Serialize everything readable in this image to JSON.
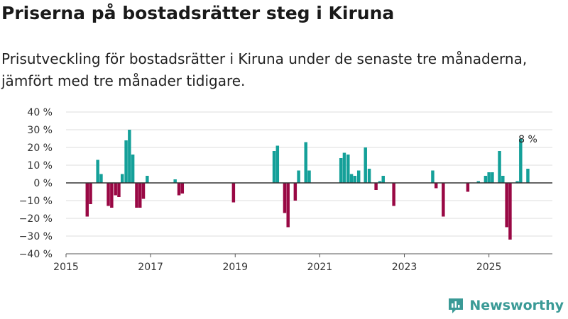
{
  "header": {
    "title": "Priserna på bostadsrätter steg i Kiruna",
    "subtitle": "Prisutveckling för bostadsrätter i Kiruna under de senaste tre månaderna, jämfört med tre månader tidigare."
  },
  "brand": {
    "name": "Newsworthy",
    "icon": "newsworthy-logo-icon"
  },
  "colors": {
    "positive": "#14a099",
    "negative": "#990844",
    "zero_line": "#333333",
    "grid": "#dddddd"
  },
  "chart_data": {
    "type": "bar",
    "title": "Priserna på bostadsrätter steg i Kiruna",
    "xlabel": "",
    "ylabel": "",
    "ylim": [
      -40,
      40
    ],
    "xlim": [
      2015,
      2026.5
    ],
    "y_ticks": [
      40,
      30,
      20,
      10,
      0,
      -10,
      -20,
      -30,
      -40
    ],
    "y_tick_labels": [
      "40 %",
      "30 %",
      "20 %",
      "10 %",
      "0 %",
      "−10 %",
      "−20 %",
      "−30 %",
      "−40 %"
    ],
    "x_ticks": [
      2015,
      2017,
      2019,
      2021,
      2023,
      2025
    ],
    "x_tick_labels": [
      "2015",
      "2017",
      "2019",
      "2021",
      "2023",
      "2025"
    ],
    "grid": true,
    "bar_width_years": 0.075,
    "series": [
      {
        "name": "Prisutveckling",
        "points": [
          {
            "x": 2015.5,
            "value": -19
          },
          {
            "x": 2015.58,
            "value": -12
          },
          {
            "x": 2015.75,
            "value": 13
          },
          {
            "x": 2015.83,
            "value": 5
          },
          {
            "x": 2016.0,
            "value": -13
          },
          {
            "x": 2016.08,
            "value": -14
          },
          {
            "x": 2016.17,
            "value": -7
          },
          {
            "x": 2016.25,
            "value": -8
          },
          {
            "x": 2016.33,
            "value": 5
          },
          {
            "x": 2016.42,
            "value": 24
          },
          {
            "x": 2016.5,
            "value": 30
          },
          {
            "x": 2016.58,
            "value": 16
          },
          {
            "x": 2016.67,
            "value": -14
          },
          {
            "x": 2016.75,
            "value": -14
          },
          {
            "x": 2016.83,
            "value": -9
          },
          {
            "x": 2016.92,
            "value": 4
          },
          {
            "x": 2017.58,
            "value": 2
          },
          {
            "x": 2017.67,
            "value": -7
          },
          {
            "x": 2017.75,
            "value": -6
          },
          {
            "x": 2018.96,
            "value": -11
          },
          {
            "x": 2019.92,
            "value": 18
          },
          {
            "x": 2020.0,
            "value": 21
          },
          {
            "x": 2020.17,
            "value": -17
          },
          {
            "x": 2020.25,
            "value": -25
          },
          {
            "x": 2020.42,
            "value": -10
          },
          {
            "x": 2020.5,
            "value": 7
          },
          {
            "x": 2020.67,
            "value": 23
          },
          {
            "x": 2020.75,
            "value": 7
          },
          {
            "x": 2021.5,
            "value": 14
          },
          {
            "x": 2021.58,
            "value": 17
          },
          {
            "x": 2021.67,
            "value": 16
          },
          {
            "x": 2021.75,
            "value": 5
          },
          {
            "x": 2021.83,
            "value": 4
          },
          {
            "x": 2021.92,
            "value": 7
          },
          {
            "x": 2022.08,
            "value": 20
          },
          {
            "x": 2022.17,
            "value": 8
          },
          {
            "x": 2022.33,
            "value": -4
          },
          {
            "x": 2022.42,
            "value": 1
          },
          {
            "x": 2022.5,
            "value": 4
          },
          {
            "x": 2022.75,
            "value": -13
          },
          {
            "x": 2023.67,
            "value": 7
          },
          {
            "x": 2023.75,
            "value": -3
          },
          {
            "x": 2023.92,
            "value": -19
          },
          {
            "x": 2024.5,
            "value": -5
          },
          {
            "x": 2024.75,
            "value": 1
          },
          {
            "x": 2024.92,
            "value": 4
          },
          {
            "x": 2025.0,
            "value": 6
          },
          {
            "x": 2025.08,
            "value": 6
          },
          {
            "x": 2025.25,
            "value": 18
          },
          {
            "x": 2025.33,
            "value": 4
          },
          {
            "x": 2025.42,
            "value": -25
          },
          {
            "x": 2025.5,
            "value": -32
          },
          {
            "x": 2025.67,
            "value": 1
          },
          {
            "x": 2025.75,
            "value": 25
          },
          {
            "x": 2025.92,
            "value": 8
          }
        ]
      }
    ],
    "annotations": [
      {
        "x": 2025.92,
        "value": 8,
        "text": "8 %"
      }
    ]
  }
}
